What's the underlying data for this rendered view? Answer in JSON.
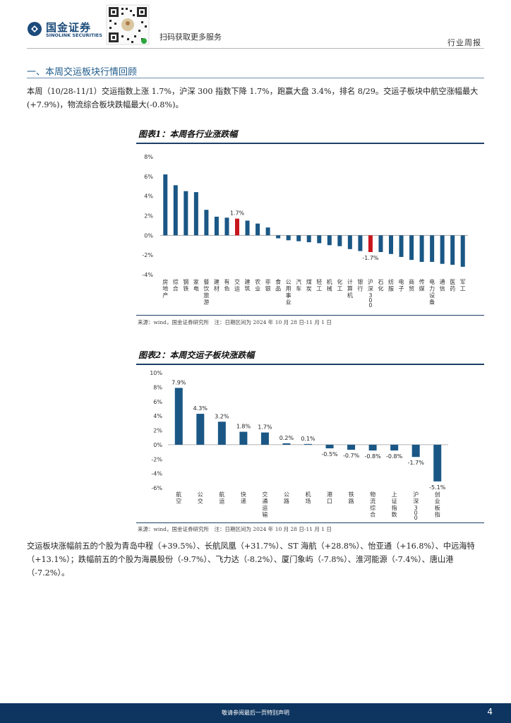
{
  "header": {
    "logo_cn": "国金证券",
    "logo_en": "SINOLINK SECURITIES",
    "qr_caption": "扫码获取更多服务",
    "report_type": "行业周报"
  },
  "section": {
    "title": "一、本周交运板块行情回顾"
  },
  "paragraphs": {
    "intro": "本周（10/28-11/1）交运指数上涨 1.7%，沪深 300 指数下降 1.7%，跑赢大盘 3.4%，排名 8/29。交运子板块中航空涨幅最大(+7.9%)，物流综合板块跌幅最大(-0.8%)。",
    "closing": "交运板块涨幅前五的个股为青岛中程（+39.5%）、长航凤凰（+31.7%）、ST 海航（+28.8%）、怡亚通（+16.8%）、中远海特（+13.1%）；跌幅前五的个股为海晨股份（-9.7%）、飞力达（-8.2%）、厦门象屿（-7.8%）、淮河能源（-7.4%）、唐山港（-7.2%）。"
  },
  "figures": {
    "fig1_title": "图表1：本周各行业涨跌幅",
    "fig1_source": "来源：wind，国金证券研究所　注：日期区间为 2024 年 10 月 28 日-11 月 1 日",
    "fig2_title": "图表2：本周交运子板块涨跌幅",
    "fig2_source": "来源：wind，国金证券研究所　注：日期区间为 2024 年 10 月 28 日-11 月 1 日"
  },
  "footer": {
    "disclaimer": "敬请参阅最后一页特别声明",
    "page_number": "4"
  },
  "colors": {
    "bar": "#1a5785",
    "highlight": "#c8161d",
    "footer": "#0e3560"
  },
  "chart_data": [
    {
      "type": "bar",
      "categories": [
        "房地产",
        "综合",
        "钢铁",
        "家电",
        "餐饮旅游",
        "建材",
        "有色",
        "交运",
        "建筑",
        "农业",
        "非银",
        "食品",
        "公用事业",
        "汽车",
        "煤炭",
        "轻工",
        "机械",
        "化工",
        "计算机",
        "银行",
        "沪深300",
        "石化",
        "纺服",
        "电子",
        "商贸",
        "传媒",
        "电力设备",
        "通信",
        "医药",
        "军工"
      ],
      "values": [
        6.2,
        5.1,
        4.5,
        4.4,
        2.6,
        1.9,
        1.8,
        1.7,
        1.5,
        1.2,
        0.8,
        -0.3,
        -0.5,
        -0.6,
        -0.7,
        -0.8,
        -1.0,
        -1.1,
        -1.4,
        -1.6,
        -1.7,
        -1.7,
        -1.9,
        -2.2,
        -2.5,
        -2.7,
        -2.7,
        -2.9,
        -3.0,
        -3.2
      ],
      "highlight": [
        "交运",
        "沪深300"
      ],
      "data_labels": [
        {
          "category": "交运",
          "text": "1.7%"
        },
        {
          "category": "沪深300",
          "text": "-1.7%"
        }
      ],
      "yticks": [
        "8%",
        "6%",
        "4%",
        "2%",
        "0%",
        "-2%",
        "-4%"
      ],
      "ylim": [
        -4,
        8
      ]
    },
    {
      "type": "bar",
      "categories": [
        "航空",
        "公交",
        "航运",
        "快递",
        "交通运输",
        "公路",
        "机场",
        "港口",
        "铁路",
        "物流综合",
        "上证指数",
        "沪深300",
        "创业板指"
      ],
      "values": [
        7.9,
        4.3,
        3.2,
        1.8,
        1.7,
        0.2,
        0.1,
        -0.5,
        -0.7,
        -0.8,
        -0.8,
        -1.7,
        -5.1
      ],
      "value_labels": [
        "7.9%",
        "4.3%",
        "3.2%",
        "1.8%",
        "1.7%",
        "0.2%",
        "0.1%",
        "-0.5%",
        "-0.7%",
        "-0.8%",
        "-0.8%",
        "-1.7%",
        "-5.1%"
      ],
      "yticks": [
        "10%",
        "8%",
        "6%",
        "4%",
        "2%",
        "0%",
        "-2%",
        "-4%",
        "-6%"
      ],
      "ylim": [
        -6,
        10
      ]
    }
  ]
}
